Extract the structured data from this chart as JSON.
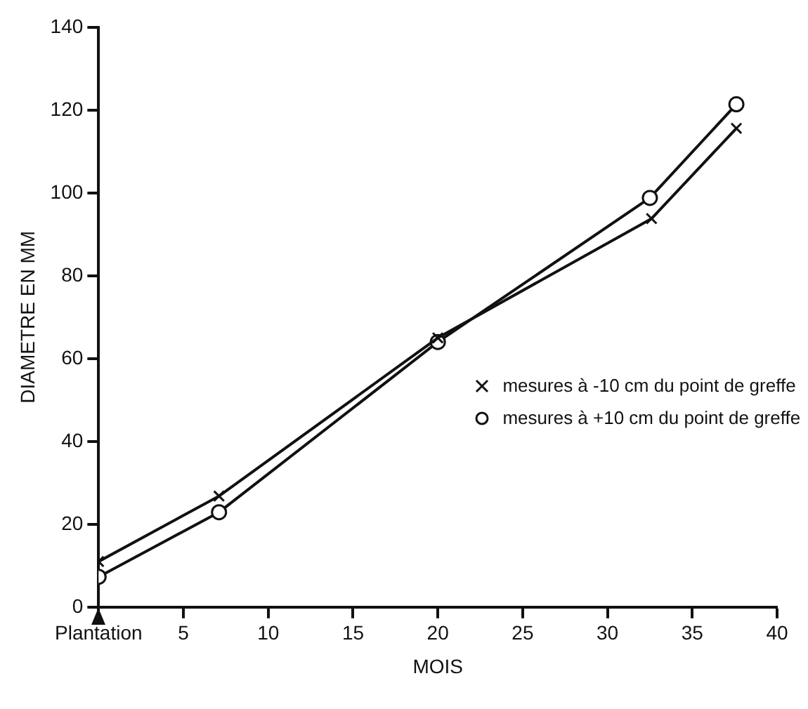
{
  "chart_data": {
    "type": "line",
    "xlabel": "MOIS",
    "ylabel": "DIAMETRE EN MM",
    "xlim": [
      0,
      40
    ],
    "xticks": [
      {
        "value": 0,
        "label": "Plantation"
      },
      5,
      10,
      15,
      20,
      25,
      30,
      35,
      40
    ],
    "ylim": [
      0,
      140
    ],
    "yticks": [
      0,
      20,
      40,
      60,
      80,
      100,
      120,
      140
    ],
    "grid": false,
    "legend": "bottom right",
    "series": [
      {
        "name": "mesures à -10 cm du point de greffe",
        "color": "#111111",
        "marker": "cross",
        "x": [
          0,
          7.1,
          20,
          32.6,
          37.6
        ],
        "values": [
          11,
          26.8,
          65,
          93.8,
          115.6
        ]
      },
      {
        "name": "mesures à +10 cm du point de greffe",
        "color": "#111111",
        "marker": "circle",
        "x": [
          0,
          7.1,
          20,
          32.5,
          37.6
        ],
        "values": [
          7.3,
          22.9,
          64,
          98.8,
          121.4
        ]
      }
    ]
  }
}
